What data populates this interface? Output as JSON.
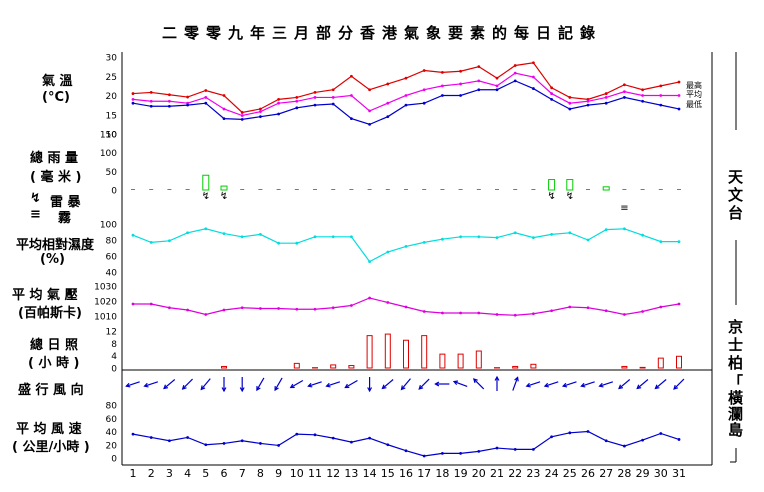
{
  "title": "二零零九年三月部分香港氣象要素的每日記錄",
  "labels": {
    "temperature": [
      "氣 溫",
      "(°C)"
    ],
    "rainfall": [
      "總 雨 量",
      "( 毫 米 )"
    ],
    "thunder": "雷 暴",
    "fog": "霧",
    "humidity": [
      "平均相對濕度",
      "(%)"
    ],
    "pressure": [
      "平 均 氣 壓",
      "(百帕斯卡)"
    ],
    "sunshine": [
      "總 日 照",
      "( 小 時 )"
    ],
    "wind_direction": "盛 行 風 向",
    "wind_speed": [
      "平 均 風 速",
      "( 公里/小時 )"
    ]
  },
  "stations": {
    "observatory": "天文台",
    "kings_park": "京士柏",
    "waglan": "「 橫 瀾 島"
  },
  "colors": {
    "max_temp": "#dd0000",
    "mean_temp": "#ee00ee",
    "min_temp": "#0000cc",
    "rain": "#00cc00",
    "humidity": "#00dddd",
    "pressure": "#dd00dd",
    "sunshine": "#dd0000",
    "wind": "#0000cc"
  },
  "chart_data": {
    "type": "line",
    "days": [
      "1",
      "2",
      "3",
      "4",
      "5",
      "6",
      "7",
      "8",
      "9",
      "10",
      "11",
      "12",
      "13",
      "14",
      "15",
      "16",
      "17",
      "18",
      "19",
      "20",
      "21",
      "22",
      "23",
      "24",
      "25",
      "26",
      "27",
      "28",
      "29",
      "30",
      "31"
    ],
    "temperature": {
      "ylim": [
        10,
        30
      ],
      "ticks": [
        10,
        15,
        20,
        25,
        30
      ],
      "series": [
        {
          "name": "最高",
          "values": [
            20.5,
            20.8,
            20.2,
            19.6,
            21.3,
            20.0,
            15.6,
            16.5,
            19.0,
            19.5,
            20.8,
            21.5,
            25.0,
            21.5,
            23.0,
            24.5,
            26.5,
            26.0,
            26.3,
            27.5,
            24.5,
            27.8,
            28.5,
            22.0,
            19.5,
            19.0,
            20.5,
            22.8,
            21.5,
            22.5,
            23.5
          ]
        },
        {
          "name": "平均",
          "values": [
            19.0,
            18.5,
            18.5,
            18.0,
            19.5,
            16.5,
            14.8,
            15.8,
            18.0,
            18.5,
            19.5,
            19.5,
            20.0,
            16.0,
            18.0,
            20.0,
            21.5,
            22.5,
            23.0,
            23.8,
            22.5,
            25.8,
            24.8,
            20.5,
            18.0,
            18.5,
            19.5,
            21.0,
            20.0,
            20.0,
            20.0
          ]
        },
        {
          "name": "最低",
          "values": [
            18.0,
            17.2,
            17.2,
            17.5,
            18.0,
            14.0,
            13.8,
            14.5,
            15.2,
            16.8,
            17.5,
            17.8,
            14.0,
            12.5,
            14.5,
            17.5,
            18.0,
            20.0,
            20.0,
            21.5,
            21.5,
            23.8,
            21.8,
            19.0,
            16.5,
            17.5,
            18.0,
            19.5,
            18.5,
            17.5,
            16.5
          ]
        }
      ]
    },
    "rainfall": {
      "ylim": [
        0,
        150
      ],
      "ticks": [
        0,
        50,
        100,
        150
      ],
      "values": [
        0.1,
        0,
        0,
        0,
        39.5,
        10.5,
        0,
        0.1,
        0.1,
        0,
        0,
        0,
        0,
        0,
        0,
        0,
        0,
        0,
        0,
        0,
        0,
        0,
        0,
        28.0,
        28.0,
        0,
        8.5,
        0.1,
        0.1,
        0,
        0
      ]
    },
    "thunderstorm_days": [
      5,
      6,
      24,
      25
    ],
    "fog_days": [
      28
    ],
    "humidity": {
      "ylim": [
        40,
        100
      ],
      "ticks": [
        40,
        60,
        80,
        100
      ],
      "values": [
        86,
        77,
        79,
        89,
        94,
        88,
        84,
        87,
        76,
        76,
        84,
        84,
        84,
        53,
        65,
        72,
        77,
        81,
        84,
        84,
        83,
        89,
        83,
        87,
        89,
        80,
        93,
        94,
        86,
        78,
        78
      ]
    },
    "pressure": {
      "ylim": [
        1010,
        1030
      ],
      "ticks": [
        1010,
        1020,
        1030
      ],
      "values": [
        1018,
        1018,
        1015.5,
        1014,
        1011,
        1014,
        1015.5,
        1015,
        1015,
        1014.5,
        1014.5,
        1015.5,
        1017,
        1022,
        1019,
        1016,
        1013,
        1012,
        1012,
        1012,
        1011,
        1010.5,
        1011.5,
        1013.5,
        1016,
        1015.5,
        1013.5,
        1011,
        1013,
        1016,
        1018
      ]
    },
    "sunshine": {
      "ylim": [
        0,
        12
      ],
      "ticks": [
        0,
        4,
        8,
        12
      ],
      "values": [
        0,
        0,
        0,
        0,
        0,
        0.5,
        0,
        0,
        0,
        1.5,
        0.1,
        1,
        0.8,
        10.5,
        11.0,
        9.0,
        10.5,
        4.5,
        4.5,
        5.5,
        0.1,
        0.5,
        1.2,
        0,
        0,
        0,
        0,
        0.5,
        0.2,
        3.2,
        3.8
      ]
    },
    "wind_direction_deg": [
      72,
      72,
      50,
      45,
      40,
      0,
      0,
      30,
      30,
      60,
      72,
      72,
      60,
      0,
      50,
      40,
      45,
      90,
      110,
      135,
      180,
      200,
      72,
      72,
      72,
      72,
      72,
      50,
      50,
      50,
      45
    ],
    "wind_speed": {
      "ylim": [
        0,
        80
      ],
      "ticks": [
        0,
        20,
        40,
        60,
        80
      ],
      "values": [
        36,
        31,
        26,
        31,
        20,
        22,
        26,
        22,
        19,
        36,
        35,
        30,
        24,
        30,
        20,
        11,
        3,
        7,
        7,
        10,
        15,
        13,
        13,
        32,
        38,
        40,
        26,
        18,
        27,
        37,
        28
      ]
    }
  }
}
